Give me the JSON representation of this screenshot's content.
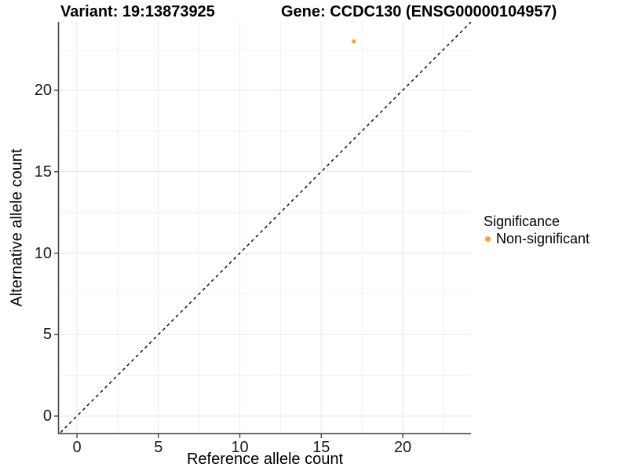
{
  "titles": {
    "variant": "Variant: 19:13873925",
    "gene": "Gene: CCDC130 (ENSG00000104957)"
  },
  "axes": {
    "x_label": "Reference allele count",
    "y_label": "Alternative allele count"
  },
  "legend": {
    "title": "Significance",
    "items": [
      {
        "label": "Non-significant",
        "color": "#F9A13E"
      }
    ]
  },
  "style": {
    "point_color": "#F9A13E",
    "major_grid_color": "#E9E9E9",
    "minor_grid_color": "#F0F0F0",
    "axis_line_color": "#474747",
    "tick_color": "#474747",
    "identity_line_color": "#000000",
    "background": "#FFFFFF"
  },
  "chart_data": {
    "type": "scatter",
    "title": "Variant: 19:13873925    Gene: CCDC130 (ENSG00000104957)",
    "xlabel": "Reference allele count",
    "ylabel": "Alternative allele count",
    "xlim": [
      -1.1,
      24.2
    ],
    "ylim": [
      -1.1,
      24.2
    ],
    "x_ticks": [
      0,
      5,
      10,
      15,
      20
    ],
    "y_ticks": [
      0,
      5,
      10,
      15,
      20
    ],
    "minor_ticks": [
      2.5,
      7.5,
      12.5,
      17.5,
      22.5
    ],
    "grid": true,
    "legend_position": "right",
    "legend_title": "Significance",
    "series": [
      {
        "name": "Non-significant",
        "color": "#F9A13E",
        "points": [
          {
            "x": 17,
            "y": 23
          }
        ]
      }
    ],
    "reference_line": {
      "type": "identity",
      "slope": 1,
      "intercept": 0,
      "style": "dashed",
      "color": "#000000"
    }
  }
}
